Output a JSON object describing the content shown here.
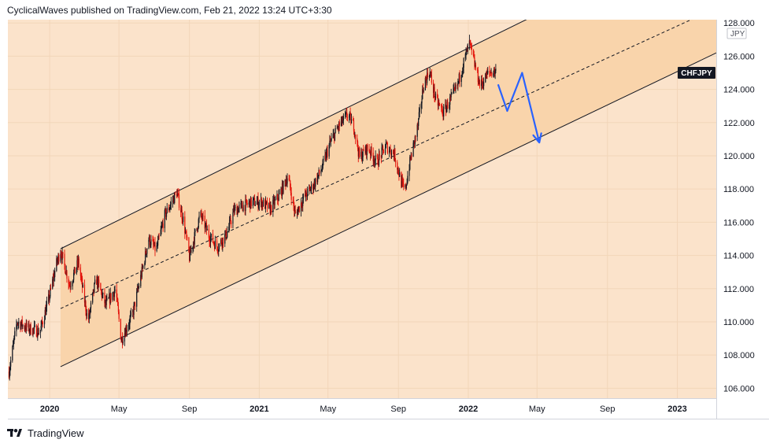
{
  "header": {
    "published_text": "CyclicalWaves published on TradingView.com, Feb 21, 2022 13:24 UTC+3:30"
  },
  "footer": {
    "brand": "TradingView",
    "logo_icon": "tradingview-logo-icon"
  },
  "chart_data": {
    "type": "candlestick",
    "symbol": "CHFJPY",
    "currency": "JPY",
    "y_ticks": [
      "106.000",
      "108.000",
      "110.000",
      "112.000",
      "114.000",
      "116.000",
      "118.000",
      "120.000",
      "122.000",
      "124.000",
      "126.000",
      "128.000"
    ],
    "ylim": [
      105.4,
      128.2
    ],
    "x_ticks": [
      "2020",
      "May",
      "Sep",
      "2021",
      "May",
      "Sep",
      "2022",
      "May",
      "Sep",
      "2023"
    ],
    "x_tick_dates": [
      "2020-01-01",
      "2020-05-01",
      "2020-09-01",
      "2021-01-01",
      "2021-05-01",
      "2021-09-01",
      "2022-01-01",
      "2022-05-01",
      "2022-09-01",
      "2023-01-01"
    ],
    "xlim": [
      "2019-10-20",
      "2023-03-10"
    ],
    "last_price": 125.1,
    "price_path": [
      [
        "2019-10-22",
        107.0
      ],
      [
        "2019-11-05",
        110.0
      ],
      [
        "2019-11-25",
        109.6
      ],
      [
        "2019-12-15",
        109.4
      ],
      [
        "2020-01-01",
        111.6
      ],
      [
        "2020-01-12",
        113.4
      ],
      [
        "2020-01-20",
        114.3
      ],
      [
        "2020-02-05",
        112.2
      ],
      [
        "2020-02-20",
        113.6
      ],
      [
        "2020-03-08",
        110.0
      ],
      [
        "2020-03-22",
        112.6
      ],
      [
        "2020-04-08",
        111.0
      ],
      [
        "2020-04-25",
        112.0
      ],
      [
        "2020-05-05",
        108.9
      ],
      [
        "2020-05-25",
        110.5
      ],
      [
        "2020-06-10",
        113.0
      ],
      [
        "2020-06-22",
        115.0
      ],
      [
        "2020-07-05",
        114.3
      ],
      [
        "2020-07-20",
        116.4
      ],
      [
        "2020-08-10",
        117.8
      ],
      [
        "2020-08-22",
        116.0
      ],
      [
        "2020-09-01",
        113.9
      ],
      [
        "2020-09-20",
        116.5
      ],
      [
        "2020-10-05",
        115.2
      ],
      [
        "2020-10-20",
        114.5
      ],
      [
        "2020-11-05",
        115.3
      ],
      [
        "2020-11-18",
        116.7
      ],
      [
        "2020-12-05",
        117.0
      ],
      [
        "2020-12-20",
        117.2
      ],
      [
        "2021-01-05",
        117.2
      ],
      [
        "2021-01-20",
        116.8
      ],
      [
        "2021-02-05",
        117.6
      ],
      [
        "2021-02-20",
        118.8
      ],
      [
        "2021-03-05",
        116.4
      ],
      [
        "2021-03-20",
        117.5
      ],
      [
        "2021-04-05",
        118.2
      ],
      [
        "2021-04-20",
        119.2
      ],
      [
        "2021-05-05",
        120.8
      ],
      [
        "2021-05-20",
        121.8
      ],
      [
        "2021-06-05",
        122.5
      ],
      [
        "2021-06-15",
        121.8
      ],
      [
        "2021-06-25",
        119.9
      ],
      [
        "2021-07-10",
        120.5
      ],
      [
        "2021-07-25",
        119.6
      ],
      [
        "2021-08-10",
        120.6
      ],
      [
        "2021-08-25",
        120.1
      ],
      [
        "2021-09-05",
        118.5
      ],
      [
        "2021-09-12",
        117.8
      ],
      [
        "2021-09-22",
        119.8
      ],
      [
        "2021-10-05",
        121.8
      ],
      [
        "2021-10-15",
        124.3
      ],
      [
        "2021-10-25",
        125.1
      ],
      [
        "2021-11-05",
        123.4
      ],
      [
        "2021-11-18",
        122.6
      ],
      [
        "2021-12-01",
        123.4
      ],
      [
        "2021-12-12",
        124.1
      ],
      [
        "2021-12-22",
        125.4
      ],
      [
        "2022-01-03",
        126.8
      ],
      [
        "2022-01-12",
        125.5
      ],
      [
        "2022-01-22",
        124.2
      ],
      [
        "2022-02-05",
        125.0
      ],
      [
        "2022-02-18",
        125.1
      ]
    ],
    "channel_lines": [
      {
        "name": "upper",
        "from": [
          "2020-01-20",
          114.4
        ],
        "to": [
          "2022-04-12",
          128.2
        ]
      },
      {
        "name": "middle",
        "from": [
          "2020-01-20",
          110.8
        ],
        "to": [
          "2023-01-25",
          128.2
        ]
      },
      {
        "name": "lower",
        "from": [
          "2020-01-20",
          107.3
        ],
        "to": [
          "2023-03-10",
          126.2
        ]
      }
    ],
    "projection_path": [
      [
        "2022-02-22",
        124.3
      ],
      [
        "2022-03-10",
        122.7
      ],
      [
        "2022-04-05",
        125.0
      ],
      [
        "2022-05-05",
        120.8
      ]
    ],
    "colors": {
      "panel_bg": "#fbe3cb",
      "channel_fill": "#f9d4ab",
      "grid": "#f2d6b9",
      "line": "#131722",
      "candle_up": "#131722",
      "candle_down": "#e3130b",
      "projection": "#2962ff",
      "label_bg": "#131722",
      "label_text": "#ffffff"
    }
  }
}
